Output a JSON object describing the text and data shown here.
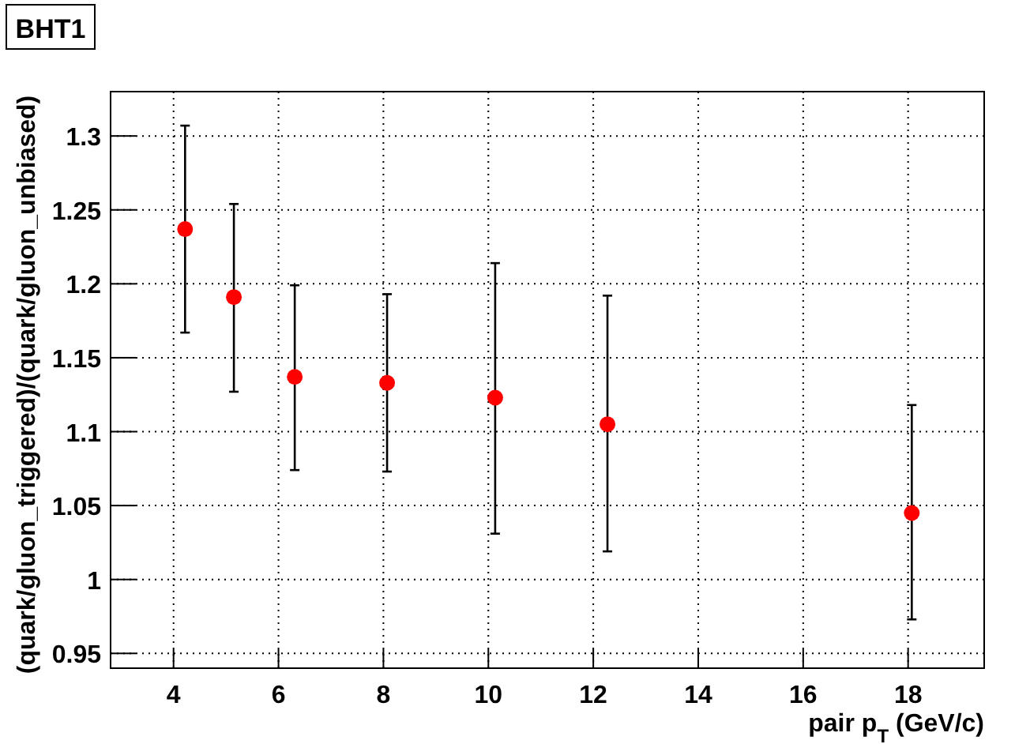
{
  "chart_data": {
    "type": "scatter",
    "title": "BHT1",
    "xlabel": "pair p$_{T}$ (GeV/c)",
    "ylabel": "(quark/gluon_triggered)/(quark/gluon_unbiased)",
    "x": [
      4.22,
      5.15,
      6.31,
      8.07,
      10.13,
      12.27,
      18.07
    ],
    "series": [
      {
        "color": "#ff0000",
        "values": [
          1.237,
          1.191,
          1.137,
          1.133,
          1.123,
          1.105,
          1.045
        ],
        "errors": [
          [
            1.167,
            1.307
          ],
          [
            1.127,
            1.254
          ],
          [
            1.074,
            1.199
          ],
          [
            1.073,
            1.193
          ],
          [
            1.031,
            1.214
          ],
          [
            1.019,
            1.192
          ],
          [
            0.973,
            1.118
          ]
        ]
      }
    ],
    "xlim": [
      2.8,
      19.45
    ],
    "ylim": [
      0.94,
      1.33
    ],
    "xticks": [
      4,
      6,
      8,
      10,
      12,
      14,
      16,
      18
    ],
    "yticks": [
      {
        "value": 0.95,
        "label": "0.95"
      },
      1,
      {
        "value": 1.05,
        "label": "1.05"
      },
      {
        "value": 1.1,
        "label": "1.1"
      },
      {
        "value": 1.15,
        "label": "1.15"
      },
      {
        "value": 1.2,
        "label": "1.2"
      },
      {
        "value": 1.25,
        "label": "1.25"
      },
      {
        "value": 1.3,
        "label": "1.3"
      }
    ],
    "grid": true,
    "marker": "circle"
  }
}
